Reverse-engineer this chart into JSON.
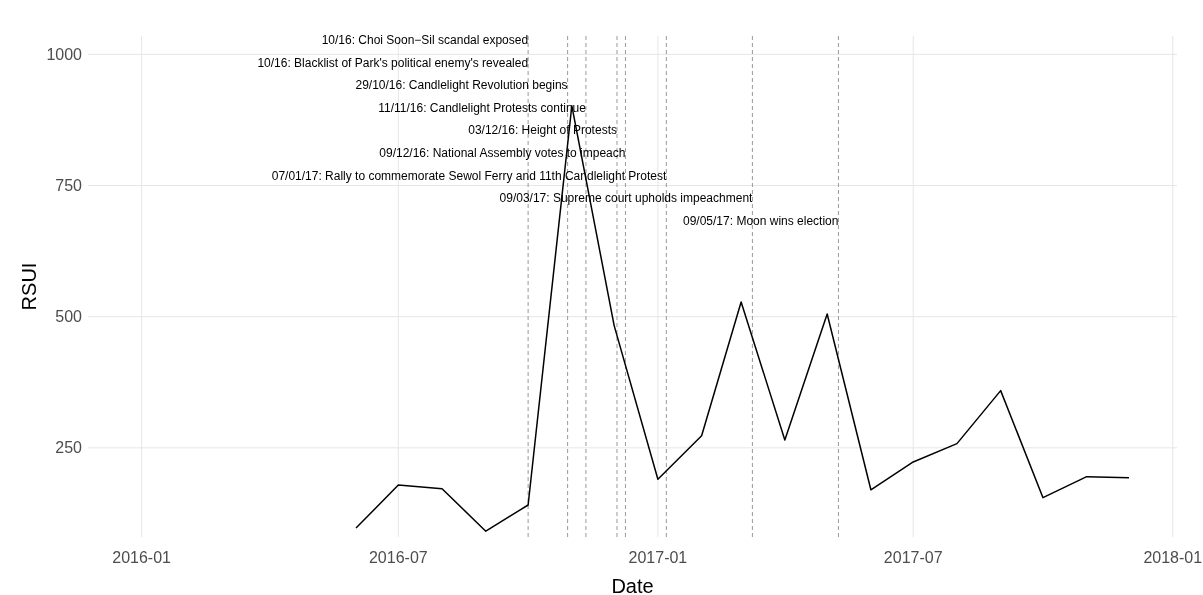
{
  "chart_data": {
    "type": "line",
    "xlabel": "Date",
    "ylabel": "RSUI",
    "x": [
      "2016-06",
      "2016-07",
      "2016-08",
      "2016-09",
      "2016-10",
      "2016-11",
      "2016-12",
      "2017-01",
      "2017-02",
      "2017-03",
      "2017-04",
      "2017-05",
      "2017-06",
      "2017-07",
      "2017-08",
      "2017-09",
      "2017-10",
      "2017-11",
      "2017-12"
    ],
    "series": [
      {
        "color": "#000000",
        "values": [
          97,
          179,
          172,
          91,
          141,
          902,
          483,
          190,
          273,
          528,
          265,
          505,
          170,
          223,
          258,
          359,
          155,
          195,
          193
        ]
      }
    ],
    "xlim": [
      "2015-11-24",
      "2018-01-04"
    ],
    "xticks": [
      "2016-01",
      "2016-07",
      "2017-01",
      "2017-07",
      "2018-01"
    ],
    "annotations": [
      "10/16: Blacklist of Park's political enemy's revealed"
    ],
    "ylim": [
      80,
      1035
    ],
    "yticks": [
      250,
      500,
      750,
      1000
    ],
    "grid": true,
    "marker": "none",
    "line_style": "solid",
    "ref_lines": [
      {
        "axis": "x",
        "value": "2016-10-01",
        "label": "10/16: Choi Soon−Sil scandal exposed",
        "color": "#999999",
        "line_style": "dashed"
      },
      {
        "axis": "x",
        "value": "2016-10-29",
        "label": "29/10/16: Candlelight Revolution begins",
        "color": "#999999",
        "line_style": "dashed"
      },
      {
        "axis": "x",
        "value": "2016-11-11",
        "label": "11/11/16: Candlelight Protests continue",
        "color": "#999999",
        "line_style": "dashed"
      },
      {
        "axis": "x",
        "value": "2016-12-03",
        "label": "03/12/16: Height of Protests",
        "color": "#999999",
        "line_style": "dashed"
      },
      {
        "axis": "x",
        "value": "2016-12-09",
        "label": "09/12/16: National Assembly votes to impeach",
        "color": "#999999",
        "line_style": "dashed"
      },
      {
        "axis": "x",
        "value": "2017-01-07",
        "label": "07/01/17: Rally to commemorate Sewol Ferry and 11th Candlelight Protest",
        "color": "#999999",
        "line_style": "dashed"
      },
      {
        "axis": "x",
        "value": "2017-03-09",
        "label": "09/03/17: Supreme court upholds impeachment",
        "color": "#999999",
        "line_style": "dashed"
      },
      {
        "axis": "x",
        "value": "2017-05-09",
        "label": "09/05/17: Moon wins election",
        "color": "#999999",
        "line_style": "dashed"
      }
    ]
  }
}
